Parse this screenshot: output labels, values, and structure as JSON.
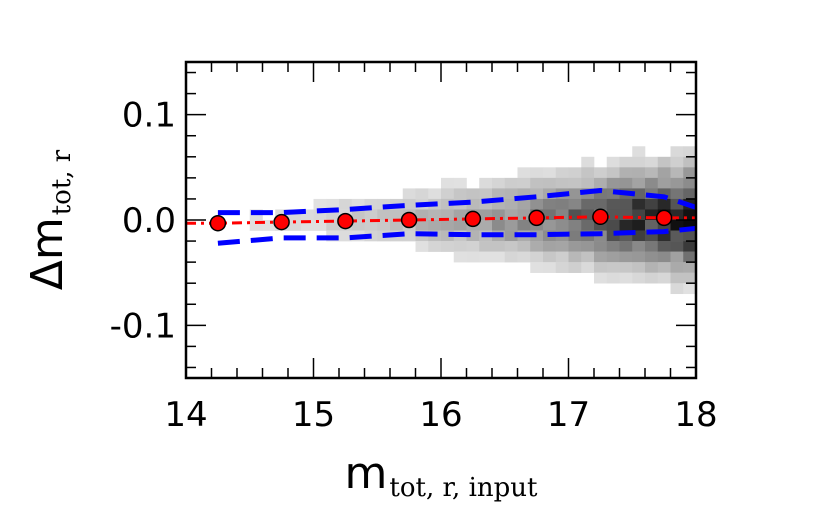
{
  "chart_data": {
    "type": "scatter",
    "title": "",
    "xlabel": {
      "main": "m",
      "sub": "tot, r, input"
    },
    "ylabel": {
      "main": "Δm",
      "sub": "tot, r"
    },
    "xlim": [
      14,
      18
    ],
    "ylim": [
      -0.15,
      0.15
    ],
    "xticks": [
      14,
      15,
      16,
      17,
      18
    ],
    "xtick_labels": [
      "14",
      "15",
      "16",
      "17",
      "18"
    ],
    "yticks": [
      0.1,
      0.0,
      -0.1
    ],
    "ytick_labels": [
      "0.1",
      "0.0",
      "-0.1"
    ],
    "grid": false,
    "background": "2d density histogram (grayscale), density increasing toward faint magnitudes",
    "colors": {
      "median_points": "#ff0000",
      "median_line": "#ff0000",
      "scatter_bands": "#0000ff",
      "density": "#000000"
    },
    "series": [
      {
        "name": "",
        "style": "red circles with black edge + red dash-dot line",
        "x": [
          14.25,
          14.75,
          15.25,
          15.75,
          16.25,
          16.75,
          17.25,
          17.75
        ],
        "y": [
          -0.003,
          -0.002,
          -0.001,
          0.0,
          0.001,
          0.002,
          0.003,
          0.002
        ]
      },
      {
        "name": "",
        "style": "blue dashed upper band",
        "x": [
          14.25,
          14.75,
          15.25,
          15.75,
          16.25,
          16.75,
          17.25,
          17.75,
          18.0
        ],
        "y": [
          0.007,
          0.007,
          0.01,
          0.014,
          0.017,
          0.022,
          0.028,
          0.022,
          0.012
        ]
      },
      {
        "name": "",
        "style": "blue dashed lower band",
        "x": [
          14.25,
          14.75,
          15.25,
          15.75,
          16.25,
          16.75,
          17.25,
          17.75,
          18.0
        ],
        "y": [
          -0.022,
          -0.017,
          -0.017,
          -0.013,
          -0.014,
          -0.014,
          -0.013,
          -0.011,
          -0.008
        ]
      }
    ]
  }
}
